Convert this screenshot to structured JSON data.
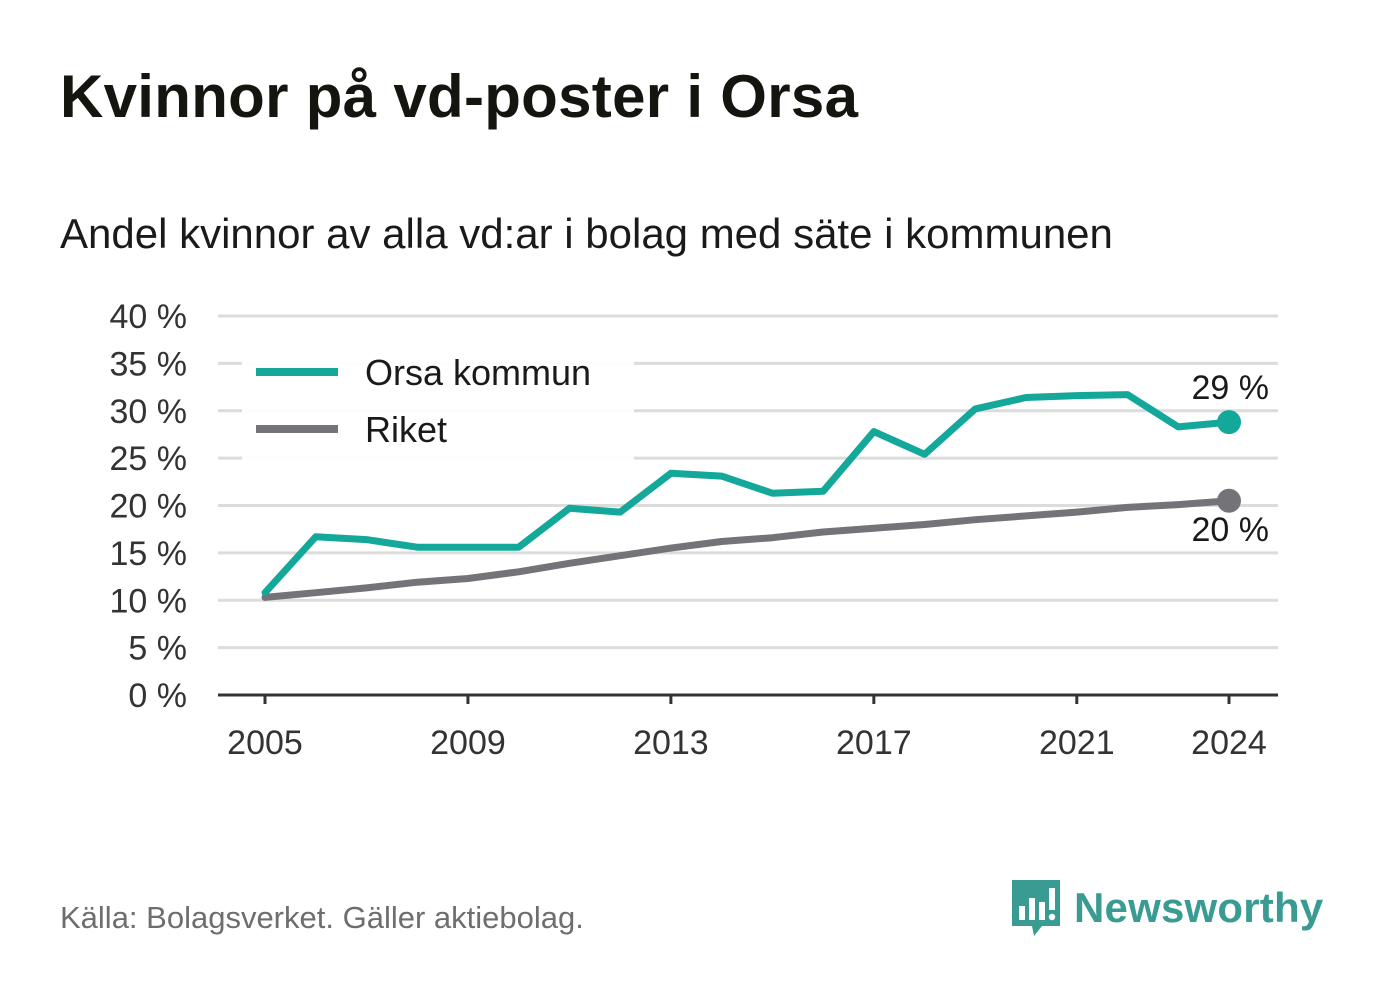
{
  "title": "Kvinnor på vd-poster i Orsa",
  "subtitle": "Andel kvinnor av alla vd:ar i bolag med säte i kommunen",
  "source": "Källa: Bolagsverket. Gäller aktiebolag.",
  "brand": {
    "name": "Newsworthy",
    "color": "#3a9b93",
    "icon": "bar-chart-speech-bubble-icon"
  },
  "chart_data": {
    "type": "line",
    "x": [
      2005,
      2006,
      2007,
      2008,
      2009,
      2010,
      2011,
      2012,
      2013,
      2014,
      2015,
      2016,
      2017,
      2018,
      2019,
      2020,
      2021,
      2022,
      2023,
      2024
    ],
    "x_ticks": [
      2005,
      2009,
      2013,
      2017,
      2021,
      2024
    ],
    "x_tick_labels": [
      "2005",
      "2009",
      "2013",
      "2017",
      "2021",
      "2024"
    ],
    "y_ticks": [
      0,
      5,
      10,
      15,
      20,
      25,
      30,
      35,
      40
    ],
    "y_tick_labels": [
      "0 %",
      "5 %",
      "10 %",
      "15 %",
      "20 %",
      "25 %",
      "30 %",
      "35 %",
      "40 %"
    ],
    "ylim": [
      0,
      40
    ],
    "grid": true,
    "legend_position": "top-left",
    "series": [
      {
        "name": "Orsa kommun",
        "color": "#14a89a",
        "values": [
          10.8,
          16.7,
          16.4,
          15.6,
          15.6,
          15.6,
          19.7,
          19.3,
          23.4,
          23.1,
          21.3,
          21.5,
          27.8,
          25.4,
          30.2,
          31.4,
          31.6,
          31.7,
          28.3,
          28.8
        ],
        "end_label": "29 %"
      },
      {
        "name": "Riket",
        "color": "#747378",
        "values": [
          10.3,
          10.8,
          11.3,
          11.9,
          12.3,
          13.0,
          13.9,
          14.7,
          15.5,
          16.2,
          16.6,
          17.2,
          17.6,
          18.0,
          18.5,
          18.9,
          19.3,
          19.8,
          20.1,
          20.5
        ],
        "end_label": "20 %"
      }
    ]
  }
}
